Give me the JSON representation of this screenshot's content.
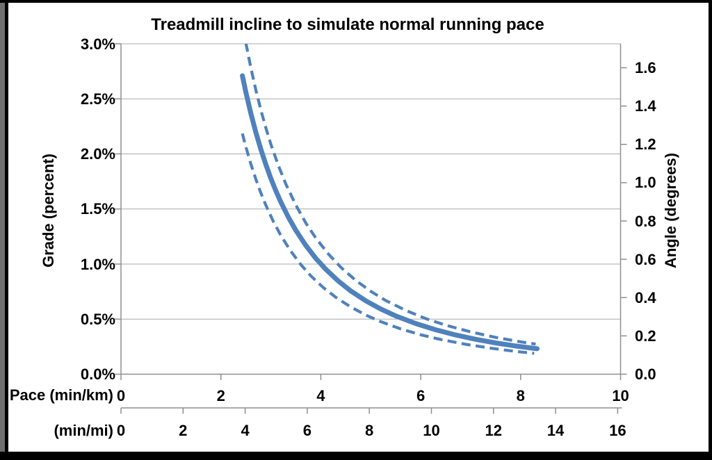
{
  "title": "Treadmill incline to simulate normal running pace",
  "axes": {
    "left": {
      "title": "Grade (percent)",
      "tick_labels": [
        "3.0%",
        "2.5%",
        "2.0%",
        "1.5%",
        "1.0%",
        "0.5%",
        "0.0%"
      ]
    },
    "right": {
      "title": "Angle (degrees)",
      "tick_labels": [
        "1.6",
        "1.4",
        "1.2",
        "1.0",
        "0.8",
        "0.6",
        "0.4",
        "0.2",
        "0.0"
      ]
    },
    "bottom_km": {
      "title": "Pace (min/km)",
      "tick_labels": [
        "0",
        "2",
        "4",
        "6",
        "8",
        "10"
      ]
    },
    "bottom_mi": {
      "title": "(min/mi)",
      "tick_labels": [
        "0",
        "2",
        "4",
        "6",
        "8",
        "10",
        "12",
        "14",
        "16"
      ]
    }
  },
  "chart_data": {
    "type": "line",
    "title": "Treadmill incline to simulate normal running pace",
    "xlabel_primary": "Pace (min/km)",
    "xlabel_secondary": "(min/mi)",
    "ylabel_left": "Grade (percent)",
    "ylabel_right": "Angle (degrees)",
    "x_range_min_per_km": [
      0,
      10
    ],
    "x_range_min_per_mi": [
      0,
      16
    ],
    "y_range_grade_percent": [
      0.0,
      3.0
    ],
    "y_right_ticks_angle_degrees": [
      0.0,
      0.2,
      0.4,
      0.6,
      0.8,
      1.0,
      1.2,
      1.4,
      1.6
    ],
    "grid": "horizontal-only",
    "legend": "none",
    "line_color": "#4f81bd",
    "series": [
      {
        "name": "treadmill-grade",
        "style": "solid",
        "points_pace_min_per_km_vs_grade_pct": [
          [
            2.43,
            2.71
          ],
          [
            2.5,
            2.56
          ],
          [
            2.6,
            2.367
          ],
          [
            2.7,
            2.195
          ],
          [
            2.8,
            2.041
          ],
          [
            2.9,
            1.903
          ],
          [
            3.0,
            1.778
          ],
          [
            3.1,
            1.665
          ],
          [
            3.2,
            1.563
          ],
          [
            3.35,
            1.426
          ],
          [
            3.5,
            1.306
          ],
          [
            3.7,
            1.169
          ],
          [
            3.9,
            1.052
          ],
          [
            4.1,
            0.952
          ],
          [
            4.35,
            0.846
          ],
          [
            4.6,
            0.756
          ],
          [
            4.9,
            0.666
          ],
          [
            5.2,
            0.592
          ],
          [
            5.5,
            0.529
          ],
          [
            5.9,
            0.46
          ],
          [
            6.3,
            0.403
          ],
          [
            6.7,
            0.356
          ],
          [
            7.1,
            0.317
          ],
          [
            7.5,
            0.284
          ],
          [
            7.9,
            0.256
          ],
          [
            8.33,
            0.231
          ]
        ]
      },
      {
        "name": "upper-band",
        "style": "dashed",
        "points_pace_min_per_km_vs_grade_pct": [
          [
            2.5,
            3.008
          ],
          [
            2.6,
            2.781
          ],
          [
            2.7,
            2.579
          ],
          [
            2.8,
            2.398
          ],
          [
            2.9,
            2.235
          ],
          [
            3.0,
            2.089
          ],
          [
            3.15,
            1.895
          ],
          [
            3.3,
            1.726
          ],
          [
            3.5,
            1.535
          ],
          [
            3.7,
            1.373
          ],
          [
            3.9,
            1.236
          ],
          [
            4.15,
            1.092
          ],
          [
            4.4,
            0.971
          ],
          [
            4.7,
            0.851
          ],
          [
            5.0,
            0.752
          ],
          [
            5.3,
            0.669
          ],
          [
            5.7,
            0.579
          ],
          [
            6.1,
            0.505
          ],
          [
            6.5,
            0.445
          ],
          [
            7.0,
            0.384
          ],
          [
            7.5,
            0.334
          ],
          [
            8.0,
            0.294
          ],
          [
            8.3,
            0.273
          ]
        ]
      },
      {
        "name": "lower-band",
        "style": "dashed",
        "points_pace_min_per_km_vs_grade_pct": [
          [
            2.43,
            2.185
          ],
          [
            2.5,
            2.064
          ],
          [
            2.6,
            1.908
          ],
          [
            2.7,
            1.77
          ],
          [
            2.8,
            1.645
          ],
          [
            2.9,
            1.534
          ],
          [
            3.05,
            1.387
          ],
          [
            3.2,
            1.26
          ],
          [
            3.4,
            1.116
          ],
          [
            3.6,
            0.995
          ],
          [
            3.8,
            0.893
          ],
          [
            4.05,
            0.786
          ],
          [
            4.3,
            0.698
          ],
          [
            4.6,
            0.61
          ],
          [
            4.9,
            0.537
          ],
          [
            5.2,
            0.477
          ],
          [
            5.6,
            0.411
          ],
          [
            6.0,
            0.358
          ],
          [
            6.4,
            0.315
          ],
          [
            6.9,
            0.271
          ],
          [
            7.4,
            0.236
          ],
          [
            7.9,
            0.207
          ],
          [
            8.27,
            0.189
          ]
        ]
      }
    ]
  }
}
